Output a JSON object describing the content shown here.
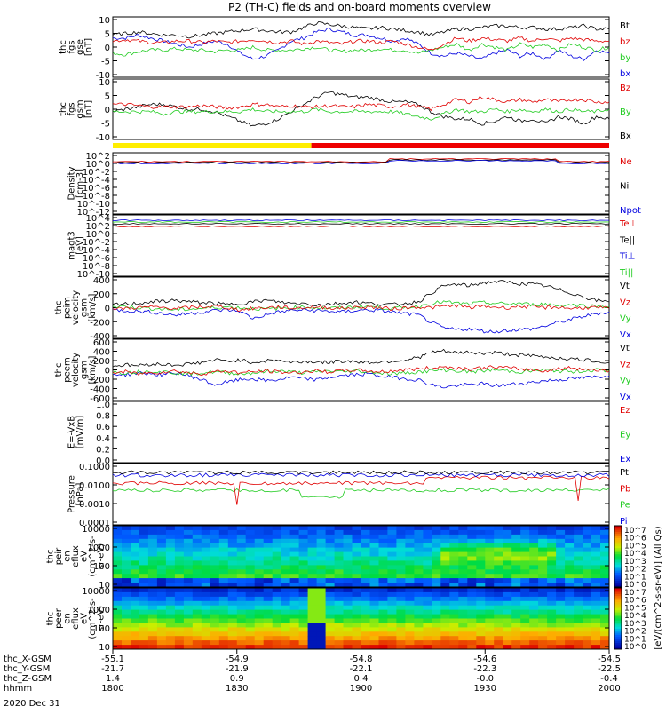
{
  "title": "P2 (TH-C) fields and on-board moments overview",
  "colors": {
    "black": "#000000",
    "red": "#e00000",
    "green": "#22cc22",
    "blue": "#0000e0",
    "yellow": "#ffee00",
    "bar_red": "#ee0000"
  },
  "chart_data": [
    {
      "type": "line",
      "id": "fgs_gse",
      "ylabel": [
        "thc",
        "fgs",
        "gse",
        "[nT]"
      ],
      "ylim": [
        -10,
        10
      ],
      "yticks": [
        "10",
        "5",
        "0",
        "-5",
        "-10"
      ],
      "legend": [
        {
          "label": "Bt",
          "color": "black"
        },
        {
          "label": "bz",
          "color": "red"
        },
        {
          "label": "by",
          "color": "green"
        },
        {
          "label": "bx",
          "color": "blue"
        }
      ],
      "series": [
        {
          "name": "Bt",
          "color": "black",
          "values": [
            4,
            4.5,
            5,
            4.5,
            4,
            4,
            3.5,
            4,
            4.5,
            5,
            5.5,
            6,
            5.5,
            5,
            5,
            6.5,
            8,
            7.5,
            7,
            6.5,
            6,
            6.5,
            6,
            5.5,
            5,
            4,
            5,
            6,
            6,
            6.5,
            7,
            7,
            6.5,
            6.5,
            6,
            6,
            6.5,
            7,
            6,
            6
          ]
        },
        {
          "name": "bz",
          "color": "red",
          "values": [
            2,
            2.5,
            2,
            1.5,
            1.5,
            2,
            2,
            1.5,
            2,
            1.5,
            2,
            2.5,
            2,
            1.5,
            2,
            1,
            2,
            1.5,
            1,
            2,
            2,
            1.5,
            2,
            1,
            0,
            -1,
            1,
            3,
            2,
            3,
            2.5,
            2,
            3,
            2,
            3,
            2,
            3,
            2.5,
            2,
            2
          ]
        },
        {
          "name": "by",
          "color": "green",
          "values": [
            -2,
            -2.5,
            -1.5,
            -1,
            -1,
            -0.5,
            -1,
            -1,
            -1.5,
            -1,
            -1,
            0,
            -1,
            -1,
            -1,
            -0.5,
            0,
            -1,
            -1.5,
            -1,
            -1,
            -0.5,
            -1,
            -1,
            -2,
            -1,
            0,
            1,
            -1,
            1,
            0,
            -1,
            1,
            0,
            1,
            -1,
            1,
            0,
            -1,
            0
          ]
        },
        {
          "name": "bx",
          "color": "blue",
          "values": [
            3,
            3,
            4,
            3,
            2,
            1,
            0,
            1,
            2,
            1,
            -2,
            -4,
            -3,
            -1,
            2,
            3,
            5,
            6,
            5,
            4,
            4,
            3,
            2,
            3,
            1,
            -2,
            -3,
            -2,
            -3,
            -4,
            -2,
            -1,
            -3,
            -2,
            -4,
            -1,
            -3,
            -4,
            -1,
            -2
          ]
        }
      ]
    },
    {
      "type": "line",
      "id": "fgs_gsm",
      "ylabel": [
        "thc",
        "fgs",
        "gsm",
        "[nT]"
      ],
      "ylim": [
        -12.5,
        12.5
      ],
      "yticks": [
        "10",
        "5",
        "0",
        "-5",
        "-10"
      ],
      "legend": [
        {
          "label": "Bz",
          "color": "red"
        },
        {
          "label": "By",
          "color": "green"
        },
        {
          "label": "Bx",
          "color": "black"
        }
      ],
      "series": [
        {
          "name": "Bz",
          "color": "red",
          "values": [
            2,
            2,
            1.5,
            1,
            1,
            1,
            1,
            1.5,
            1,
            0.5,
            1,
            2,
            2,
            1,
            1.5,
            1,
            1,
            1.5,
            1,
            1,
            2,
            1.5,
            1,
            2,
            1,
            0,
            2,
            4,
            3,
            5,
            4,
            3,
            4,
            3,
            4,
            3,
            4,
            4,
            3,
            3
          ]
        },
        {
          "name": "By",
          "color": "green",
          "values": [
            -1,
            -1,
            -1,
            -1,
            -2,
            -1,
            -1,
            -1,
            -1,
            -1,
            -1,
            0,
            -1,
            -1,
            -1,
            -1,
            0,
            -1,
            -1,
            -1,
            -1,
            -1,
            -1,
            -2,
            -3,
            -4,
            -2,
            0,
            -1,
            -1,
            0,
            -1,
            0,
            -1,
            0,
            -1,
            0,
            -1,
            -1,
            0
          ]
        },
        {
          "name": "Bx",
          "color": "black",
          "values": [
            -1,
            0,
            1,
            2,
            2,
            1,
            0,
            0,
            -1,
            -3,
            -5,
            -7,
            -6,
            -4,
            -1,
            2,
            5,
            7,
            6,
            5,
            5,
            4,
            3,
            3,
            2,
            -1,
            -3,
            -4,
            -4,
            -6,
            -5,
            -3,
            -5,
            -4,
            -6,
            -3,
            -4,
            -6,
            -3,
            -4
          ]
        }
      ]
    },
    {
      "type": "line",
      "id": "density",
      "ylabel": [
        "Density",
        "[cm-3]"
      ],
      "yticks": [
        "10^2",
        "10^0",
        "10^-2",
        "10^-4",
        "10^-6",
        "10^-8",
        "10^-10",
        "10^-12"
      ],
      "legend": [
        {
          "label": "Ne",
          "color": "red"
        },
        {
          "label": "Ni",
          "color": "black"
        },
        {
          "label": "Npot",
          "color": "blue"
        }
      ]
    },
    {
      "type": "line",
      "id": "temperature",
      "ylabel": [
        "magt3",
        "[eV]"
      ],
      "yticks": [
        "10^4",
        "10^2",
        "10^0",
        "10^-2",
        "10^-4",
        "10^-6",
        "10^-8",
        "10^-10"
      ],
      "legend": [
        {
          "label": "Te⊥",
          "color": "red"
        },
        {
          "label": "Te||",
          "color": "black"
        },
        {
          "label": "Ti⊥",
          "color": "blue"
        },
        {
          "label": "Ti||",
          "color": "green"
        }
      ]
    },
    {
      "type": "line",
      "id": "peim_velocity",
      "ylabel": [
        "thc",
        "peim",
        "velocity",
        "gsm",
        "[km/s]"
      ],
      "ylim": [
        -420,
        420
      ],
      "yticks": [
        "400",
        "200",
        "0",
        "-200",
        "-400"
      ],
      "legend": [
        {
          "label": "Vt",
          "color": "black"
        },
        {
          "label": "Vz",
          "color": "red"
        },
        {
          "label": "Vy",
          "color": "green"
        },
        {
          "label": "Vx",
          "color": "blue"
        }
      ],
      "series": [
        {
          "name": "Vt",
          "color": "black",
          "values": [
            40,
            50,
            60,
            80,
            90,
            100,
            80,
            70,
            60,
            40,
            60,
            80,
            100,
            80,
            60,
            60,
            40,
            50,
            60,
            80,
            60,
            50,
            40,
            60,
            80,
            200,
            300,
            320,
            300,
            340,
            360,
            350,
            330,
            320,
            300,
            250,
            200,
            150,
            100,
            80
          ]
        },
        {
          "name": "Vz",
          "color": "red",
          "values": [
            -20,
            -10,
            0,
            10,
            0,
            -10,
            0,
            10,
            20,
            0,
            -30,
            -10,
            0,
            10,
            -10,
            0,
            10,
            0,
            -10,
            0,
            10,
            0,
            -20,
            0,
            10,
            0,
            20,
            30,
            0,
            20,
            10,
            0,
            20,
            10,
            0,
            10,
            -10,
            0,
            0,
            -10
          ]
        },
        {
          "name": "Vy",
          "color": "green",
          "values": [
            10,
            20,
            0,
            -10,
            -20,
            -30,
            -20,
            -10,
            0,
            10,
            0,
            -10,
            -20,
            -10,
            0,
            10,
            0,
            -10,
            0,
            10,
            20,
            0,
            -10,
            0,
            20,
            60,
            80,
            60,
            50,
            70,
            60,
            50,
            60,
            40,
            50,
            30,
            40,
            30,
            20,
            20
          ]
        },
        {
          "name": "Vx",
          "color": "blue",
          "values": [
            -30,
            -40,
            -50,
            -60,
            -80,
            -100,
            -80,
            -60,
            -40,
            -30,
            -50,
            -150,
            -100,
            -60,
            -40,
            -30,
            -40,
            -50,
            -60,
            -40,
            -30,
            -40,
            -60,
            -80,
            -100,
            -200,
            -280,
            -300,
            -290,
            -320,
            -330,
            -310,
            -300,
            -290,
            -250,
            -200,
            -160,
            -120,
            -80,
            -60
          ]
        }
      ]
    },
    {
      "type": "line",
      "id": "peem_velocity",
      "ylabel": [
        "thc",
        "peem",
        "velocity",
        "gsm",
        "[km/s]"
      ],
      "ylim": [
        -620,
        620
      ],
      "yticks": [
        "600",
        "400",
        "200",
        "0",
        "-200",
        "-400",
        "-600"
      ],
      "legend": [
        {
          "label": "Vt",
          "color": "black"
        },
        {
          "label": "Vz",
          "color": "red"
        },
        {
          "label": "Vy",
          "color": "green"
        },
        {
          "label": "Vx",
          "color": "blue"
        }
      ],
      "series": [
        {
          "name": "Vt",
          "color": "black",
          "values": [
            80,
            100,
            90,
            120,
            110,
            100,
            120,
            150,
            200,
            180,
            200,
            150,
            180,
            200,
            150,
            170,
            160,
            150,
            180,
            170,
            150,
            160,
            180,
            200,
            250,
            350,
            380,
            340,
            360,
            330,
            350,
            320,
            300,
            280,
            260,
            240,
            220,
            200,
            180,
            150
          ]
        },
        {
          "name": "Vz",
          "color": "red",
          "values": [
            -60,
            -40,
            -80,
            -60,
            -40,
            -20,
            -60,
            -80,
            -40,
            -20,
            -60,
            -40,
            -20,
            -40,
            -60,
            -40,
            -20,
            -40,
            -20,
            0,
            -20,
            -40,
            -20,
            0,
            20,
            40,
            60,
            40,
            20,
            40,
            60,
            40,
            20,
            0,
            -20,
            20,
            40,
            20,
            0,
            -20
          ]
        },
        {
          "name": "Vy",
          "color": "green",
          "values": [
            -40,
            -60,
            -40,
            -20,
            -40,
            -60,
            -80,
            -60,
            -40,
            -60,
            -80,
            -60,
            -40,
            -20,
            -40,
            -60,
            -40,
            -20,
            -40,
            -20,
            -40,
            -60,
            -80,
            -60,
            -40,
            -20,
            0,
            -20,
            -40,
            -20,
            0,
            -20,
            -40,
            -20,
            0,
            -20,
            -40,
            -20,
            0,
            -20
          ]
        },
        {
          "name": "Vx",
          "color": "blue",
          "values": [
            -80,
            -100,
            -60,
            -80,
            -100,
            -60,
            -120,
            -200,
            -300,
            -250,
            -200,
            -180,
            -220,
            -200,
            -150,
            -180,
            -200,
            -150,
            -120,
            -100,
            -80,
            -120,
            -150,
            -180,
            -200,
            -300,
            -350,
            -320,
            -300,
            -280,
            -320,
            -300,
            -280,
            -250,
            -220,
            -200,
            -180,
            -160,
            -140,
            -120
          ]
        }
      ]
    },
    {
      "type": "line",
      "id": "efield",
      "ylabel": [
        "E=-VxB",
        "[mV/m]"
      ],
      "ylim": [
        0,
        1
      ],
      "yticks": [
        "1.0",
        "0.8",
        "0.6",
        "0.4",
        "0.2",
        "0.0"
      ],
      "legend": [
        {
          "label": "Ez",
          "color": "red"
        },
        {
          "label": "Ey",
          "color": "green"
        },
        {
          "label": "Ex",
          "color": "blue"
        }
      ]
    },
    {
      "type": "line",
      "id": "pressure",
      "ylabel": [
        "Pressure",
        "[nPa]"
      ],
      "yticks": [
        "0.1000",
        "0.0100",
        "0.0010",
        "0.0001"
      ],
      "legend": [
        {
          "label": "Pt",
          "color": "black"
        },
        {
          "label": "Pb",
          "color": "red"
        },
        {
          "label": "Pe",
          "color": "green"
        },
        {
          "label": "Pi",
          "color": "blue"
        }
      ]
    },
    {
      "type": "heatmap",
      "id": "peir",
      "ylabel": [
        "thc",
        "peir",
        "en",
        "eflux",
        "eV",
        "(cm^2-s-",
        "sr-eV)"
      ],
      "yticks": [
        "10000",
        "1000",
        "100",
        "10"
      ]
    },
    {
      "type": "heatmap",
      "id": "peer",
      "ylabel": [
        "thc",
        "peer",
        "en",
        "eflux",
        "eV",
        "(cm^2-s-",
        "sr-eV)"
      ],
      "yticks": [
        "10000",
        "1000",
        "100",
        "10"
      ]
    }
  ],
  "colorbar": {
    "ticks": [
      "10^7",
      "10^6",
      "10^5",
      "10^4",
      "10^3",
      "10^2",
      "10^1",
      "10^0",
      "10^7",
      "10^6",
      "10^5",
      "10^4",
      "10^3",
      "10^2",
      "10^1",
      "10^0"
    ],
    "label": "[eV/(cm^2-s-sr-eV)] (All Qs)"
  },
  "mode_bar": {
    "yellow_until": 0.4,
    "red_from": 0.4
  },
  "xaxis": {
    "rows": [
      {
        "label": "thc_X-GSM",
        "values": [
          "-55.1",
          "-54.9",
          "-54.8",
          "-54.6",
          "-54.5"
        ]
      },
      {
        "label": "thc_Y-GSM",
        "values": [
          "-21.7",
          "-21.9",
          "-22.1",
          "-22.3",
          "-22.5"
        ]
      },
      {
        "label": "thc_Z-GSM",
        "values": [
          "1.4",
          "0.9",
          "0.4",
          "-0.0",
          "-0.4"
        ]
      },
      {
        "label": "hhmm",
        "values": [
          "1800",
          "1830",
          "1900",
          "1930",
          "2000"
        ]
      }
    ],
    "date": "2020 Dec 31"
  }
}
